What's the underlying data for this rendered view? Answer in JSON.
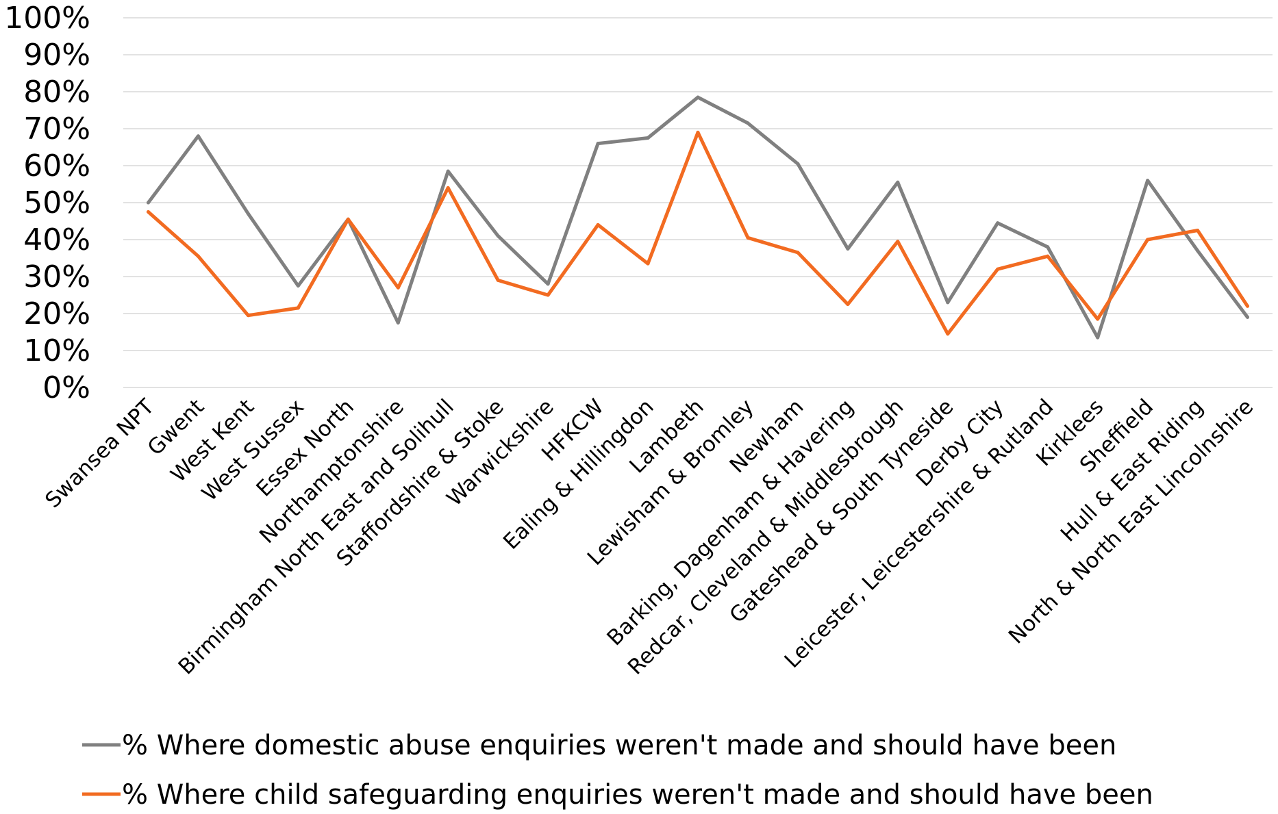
{
  "chart_data": {
    "type": "line",
    "title": "",
    "xlabel": "",
    "ylabel": "",
    "ylim": [
      0,
      100
    ],
    "y_ticks": [
      "0%",
      "10%",
      "20%",
      "30%",
      "40%",
      "50%",
      "60%",
      "70%",
      "80%",
      "90%",
      "100%"
    ],
    "grid": "horizontal",
    "legend_position": "bottom",
    "categories": [
      "Swansea NPT",
      "Gwent",
      "West Kent",
      "West Sussex",
      "Essex North",
      "Northamptonshire",
      "Birmingham North East and Solihull",
      "Staffordshire & Stoke",
      "Warwickshire",
      "HFKCW",
      "Ealing & Hillingdon",
      "Lambeth",
      "Lewisham & Bromley",
      "Newham",
      "Barking, Dagenham & Havering",
      "Redcar, Cleveland & Middlesbrough",
      "Gateshead & South Tyneside",
      "Derby City",
      "Leicester, Leicestershire & Rutland",
      "Kirklees",
      "Sheffield",
      "Hull & East Riding",
      "North & North East Lincolnshire"
    ],
    "series": [
      {
        "name": "% Where domestic abuse enquiries weren't made and should have been",
        "color": "#808080",
        "values": [
          50,
          68,
          47,
          27.5,
          45.5,
          17.5,
          58.5,
          41,
          28,
          66,
          67.5,
          78.5,
          71.5,
          60.5,
          37.5,
          55.5,
          23,
          44.5,
          38,
          13.5,
          56,
          37,
          19
        ]
      },
      {
        "name": "% Where child safeguarding enquiries weren't made and should have been",
        "color": "#f26b21",
        "values": [
          47.5,
          35.5,
          19.5,
          21.5,
          45.5,
          27,
          54,
          29,
          25,
          44,
          33.5,
          69,
          40.5,
          36.5,
          22.5,
          39.5,
          14.5,
          32,
          35.5,
          18.5,
          40,
          42.5,
          22
        ]
      }
    ]
  }
}
